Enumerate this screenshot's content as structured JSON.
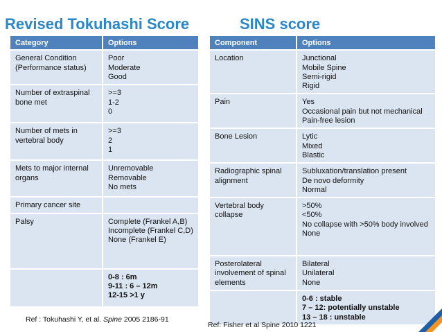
{
  "titles": {
    "left": "Revised Tokuhashi Score",
    "right": "SINS score"
  },
  "tokuhashi": {
    "headers": [
      "Category",
      "Options"
    ],
    "rows": [
      {
        "category": "General Condition (Performance status)",
        "options": [
          "Poor",
          "Moderate",
          "Good"
        ]
      },
      {
        "category": "Number of extraspinal bone met",
        "options": [
          ">=3",
          "1-2",
          "0"
        ]
      },
      {
        "category": "Number of mets in vertebral body",
        "options": [
          ">=3",
          "2",
          "1"
        ]
      },
      {
        "category": "Mets to major internal organs",
        "options": [
          "Unremovable",
          "Removable",
          "No mets"
        ]
      },
      {
        "category": "Primary cancer site",
        "options": []
      },
      {
        "category": "Palsy",
        "options": [
          "Complete (Frankel A,B)",
          "Incomplete (Frankel C,D)",
          "None (Frankel E)"
        ]
      }
    ],
    "score_lines": [
      "0-8 : 6m",
      "9-11 : 6 – 12m",
      "12-15 >1 y"
    ],
    "reference": {
      "prefix": "Ref : Tokuhashi Y, et al. ",
      "journal": "Spine",
      "suffix": " 2005 2186-91"
    }
  },
  "sins": {
    "headers": [
      "Component",
      "Options"
    ],
    "rows": [
      {
        "component": "Location",
        "options": [
          "Junctional",
          "Mobile Spine",
          "Semi-rigid",
          "Rigid"
        ]
      },
      {
        "component": "Pain",
        "options": [
          "Yes",
          "Occasional pain but not mechanical",
          "Pain-free lesion"
        ]
      },
      {
        "component": "Bone Lesion",
        "options": [
          "Lytic",
          "Mixed",
          "Blastic"
        ]
      },
      {
        "component": "Radiographic spinal alignment",
        "options": [
          "Subluxation/translation present",
          "De novo deformity",
          "Normal"
        ]
      },
      {
        "component": "Vertebral body collapse",
        "options": [
          ">50%",
          "<50%",
          "No collapse with >50% body involved",
          "None"
        ]
      },
      {
        "component": "Posterolateral involvement of spinal elements",
        "options": [
          "Bilateral",
          "Unilateral",
          "None"
        ]
      }
    ],
    "score_lines": [
      "0-6 : stable",
      "7 – 12: potentially unstable",
      "13 – 18 : unstable"
    ],
    "reference": "Ref: Fisher et al Spine 2010 1221"
  },
  "colors": {
    "title": "#2b87c8",
    "header_bg": "#4f81bd",
    "cell_bg": "#dbe5f1",
    "accent_orange": "#f29423",
    "accent_blue": "#1f5fa8"
  }
}
